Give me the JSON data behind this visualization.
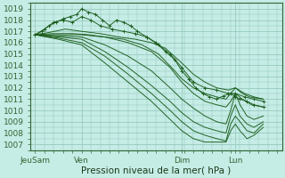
{
  "title": "",
  "xlabel": "Pression niveau de la mer( hPa )",
  "ylabel": "",
  "ylim": [
    1006.5,
    1019.5
  ],
  "xlim": [
    0,
    108
  ],
  "yticks": [
    1007,
    1008,
    1009,
    1010,
    1011,
    1012,
    1013,
    1014,
    1015,
    1016,
    1017,
    1018,
    1019
  ],
  "xtick_positions": [
    2,
    22,
    65,
    88
  ],
  "xtick_labels": [
    "JeuSam",
    "Ven",
    "Dim",
    "Lun"
  ],
  "bg_color": "#c6ece6",
  "grid_color": "#8cc4b8",
  "line_color": "#1a5c1a",
  "lines": [
    [
      2,
      1016.7,
      5,
      1017.0,
      8,
      1017.5,
      11,
      1017.8,
      14,
      1018.1,
      17,
      1018.3,
      20,
      1018.5,
      22,
      1019.0,
      25,
      1018.7,
      28,
      1018.5,
      31,
      1018.0,
      34,
      1017.5,
      37,
      1018.0,
      40,
      1017.8,
      43,
      1017.5,
      46,
      1017.0,
      50,
      1016.5,
      54,
      1016.0,
      58,
      1015.2,
      62,
      1014.5,
      65,
      1013.5,
      68,
      1012.8,
      71,
      1012.0,
      74,
      1011.5,
      77,
      1011.2,
      80,
      1011.0,
      83,
      1011.3,
      86,
      1011.5,
      88,
      1011.2,
      90,
      1011.0,
      93,
      1010.8,
      96,
      1010.5,
      100,
      1010.3
    ],
    [
      2,
      1016.7,
      6,
      1017.2,
      10,
      1017.8,
      14,
      1018.0,
      18,
      1017.8,
      22,
      1018.3,
      26,
      1018.0,
      30,
      1017.5,
      35,
      1017.2,
      40,
      1017.0,
      45,
      1016.8,
      50,
      1016.5,
      55,
      1015.8,
      60,
      1015.0,
      65,
      1013.8,
      70,
      1012.5,
      75,
      1012.0,
      80,
      1011.8,
      85,
      1011.5,
      88,
      1011.5,
      92,
      1011.2,
      96,
      1011.0,
      100,
      1010.8
    ],
    [
      2,
      1016.7,
      8,
      1016.9,
      15,
      1017.2,
      22,
      1017.0,
      30,
      1016.8,
      38,
      1016.5,
      45,
      1016.3,
      52,
      1016.0,
      58,
      1015.5,
      65,
      1014.2,
      70,
      1013.2,
      75,
      1012.5,
      80,
      1012.0,
      85,
      1011.8,
      88,
      1012.0,
      92,
      1011.5,
      96,
      1011.2,
      100,
      1011.0
    ],
    [
      2,
      1016.7,
      10,
      1016.8,
      18,
      1016.8,
      25,
      1016.7,
      32,
      1016.5,
      40,
      1016.3,
      48,
      1015.8,
      55,
      1015.0,
      62,
      1013.5,
      65,
      1012.8,
      70,
      1012.0,
      75,
      1011.5,
      80,
      1011.2,
      84,
      1011.0,
      86,
      1011.5,
      88,
      1012.0,
      91,
      1011.5,
      94,
      1011.2,
      100,
      1011.0
    ],
    [
      2,
      1016.7,
      12,
      1016.7,
      22,
      1016.7,
      32,
      1016.5,
      42,
      1016.0,
      52,
      1015.2,
      60,
      1013.8,
      65,
      1012.5,
      70,
      1011.5,
      75,
      1010.8,
      80,
      1010.5,
      84,
      1010.3,
      86,
      1010.8,
      88,
      1011.5,
      91,
      1011.0,
      95,
      1010.5,
      100,
      1010.3
    ],
    [
      2,
      1016.7,
      12,
      1016.6,
      22,
      1016.5,
      32,
      1015.8,
      42,
      1014.8,
      52,
      1013.5,
      60,
      1012.0,
      65,
      1011.0,
      70,
      1010.2,
      75,
      1009.5,
      80,
      1009.0,
      84,
      1008.8,
      86,
      1010.0,
      88,
      1011.5,
      90,
      1010.5,
      93,
      1009.5,
      96,
      1009.2,
      100,
      1009.5
    ],
    [
      2,
      1016.7,
      12,
      1016.5,
      22,
      1016.3,
      32,
      1015.2,
      42,
      1013.8,
      52,
      1012.2,
      60,
      1010.8,
      65,
      1009.8,
      70,
      1009.0,
      75,
      1008.5,
      80,
      1008.2,
      84,
      1008.0,
      86,
      1009.5,
      88,
      1010.5,
      90,
      1009.5,
      93,
      1008.8,
      96,
      1008.5,
      100,
      1009.0
    ],
    [
      2,
      1016.7,
      12,
      1016.4,
      22,
      1016.0,
      32,
      1014.8,
      42,
      1013.2,
      52,
      1011.5,
      60,
      1010.0,
      65,
      1009.0,
      70,
      1008.2,
      75,
      1007.8,
      80,
      1007.5,
      84,
      1007.3,
      86,
      1008.8,
      88,
      1009.5,
      90,
      1009.0,
      93,
      1008.2,
      96,
      1008.0,
      100,
      1008.8
    ],
    [
      2,
      1016.7,
      12,
      1016.3,
      22,
      1015.8,
      32,
      1014.2,
      42,
      1012.5,
      52,
      1010.8,
      60,
      1009.2,
      65,
      1008.2,
      70,
      1007.5,
      75,
      1007.2,
      80,
      1007.2,
      84,
      1007.2,
      86,
      1008.2,
      88,
      1008.8,
      90,
      1008.2,
      93,
      1007.5,
      96,
      1007.8,
      100,
      1008.5
    ]
  ]
}
